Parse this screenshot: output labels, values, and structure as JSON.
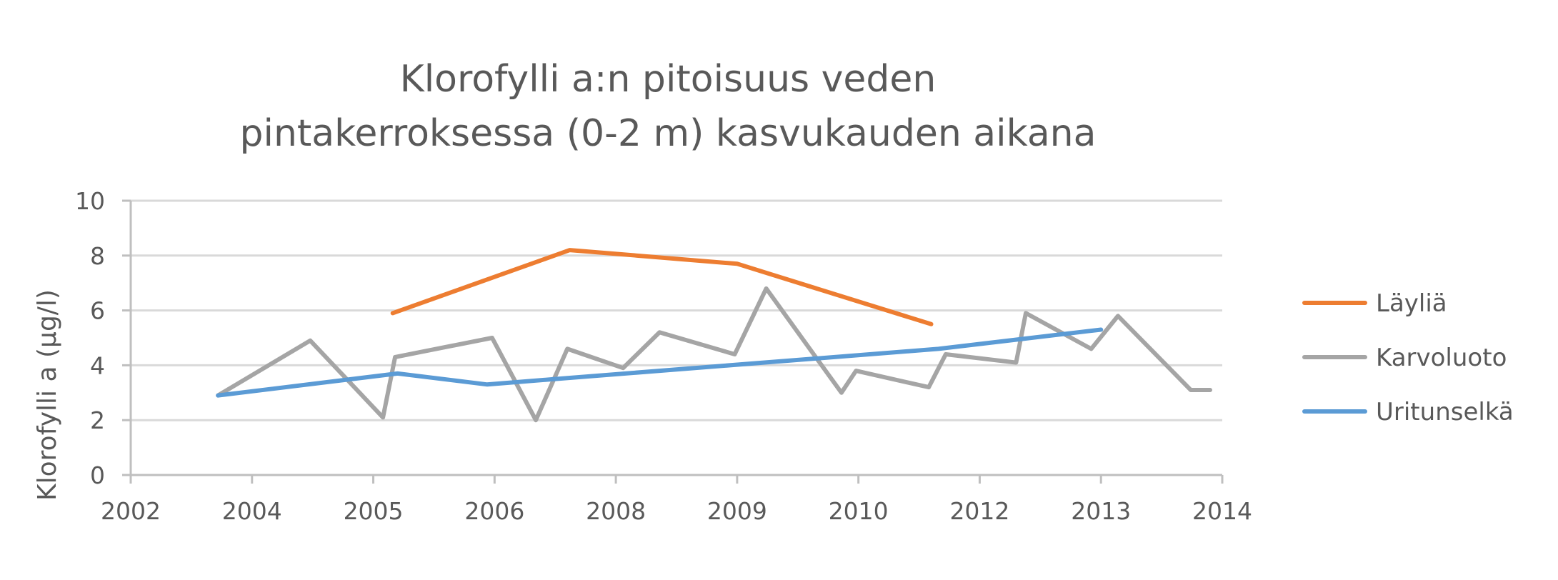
{
  "chart_data": {
    "type": "line",
    "title": [
      "Klorofylli a:n pitoisuus veden",
      "pintakerroksessa (0-2 m) kasvukauden aikana"
    ],
    "ylabel": "Klorofylli a (µg/l)",
    "xlabel": "",
    "ylim": [
      0,
      10
    ],
    "yticks": [
      0,
      2,
      4,
      6,
      8,
      10
    ],
    "x_tick_labels": [
      "2002",
      "2004",
      "2005",
      "2006",
      "2008",
      "2009",
      "2010",
      "2012",
      "2013",
      "2014"
    ],
    "grid": "horizontal",
    "legend": "right",
    "series": [
      {
        "name": "Läyliä",
        "color": "#ED7D31",
        "points": [
          {
            "x": 2.16,
            "y": 5.9
          },
          {
            "x": 3.62,
            "y": 8.2
          },
          {
            "x": 5.0,
            "y": 7.7
          },
          {
            "x": 6.6,
            "y": 5.5
          }
        ]
      },
      {
        "name": "Karvoluoto",
        "color": "#A5A5A5",
        "points": [
          {
            "x": 0.72,
            "y": 2.9
          },
          {
            "x": 1.48,
            "y": 4.9
          },
          {
            "x": 2.08,
            "y": 2.1
          },
          {
            "x": 2.18,
            "y": 4.3
          },
          {
            "x": 2.98,
            "y": 5.0
          },
          {
            "x": 3.34,
            "y": 2.0
          },
          {
            "x": 3.6,
            "y": 4.6
          },
          {
            "x": 4.06,
            "y": 3.9
          },
          {
            "x": 4.36,
            "y": 5.2
          },
          {
            "x": 4.98,
            "y": 4.4
          },
          {
            "x": 5.24,
            "y": 6.8
          },
          {
            "x": 5.86,
            "y": 3.0
          },
          {
            "x": 5.98,
            "y": 3.8
          },
          {
            "x": 6.58,
            "y": 3.2
          },
          {
            "x": 6.72,
            "y": 4.4
          },
          {
            "x": 7.3,
            "y": 4.1
          },
          {
            "x": 7.38,
            "y": 5.9
          },
          {
            "x": 7.92,
            "y": 4.6
          },
          {
            "x": 8.14,
            "y": 5.8
          },
          {
            "x": 8.74,
            "y": 3.1
          },
          {
            "x": 8.9,
            "y": 3.1
          }
        ]
      },
      {
        "name": "Uritunselkä",
        "color": "#5B9BD5",
        "points": [
          {
            "x": 0.72,
            "y": 2.9
          },
          {
            "x": 2.2,
            "y": 3.7
          },
          {
            "x": 2.94,
            "y": 3.3
          },
          {
            "x": 3.5,
            "y": 3.5
          },
          {
            "x": 6.66,
            "y": 4.6
          },
          {
            "x": 8.0,
            "y": 5.3
          }
        ]
      }
    ]
  }
}
